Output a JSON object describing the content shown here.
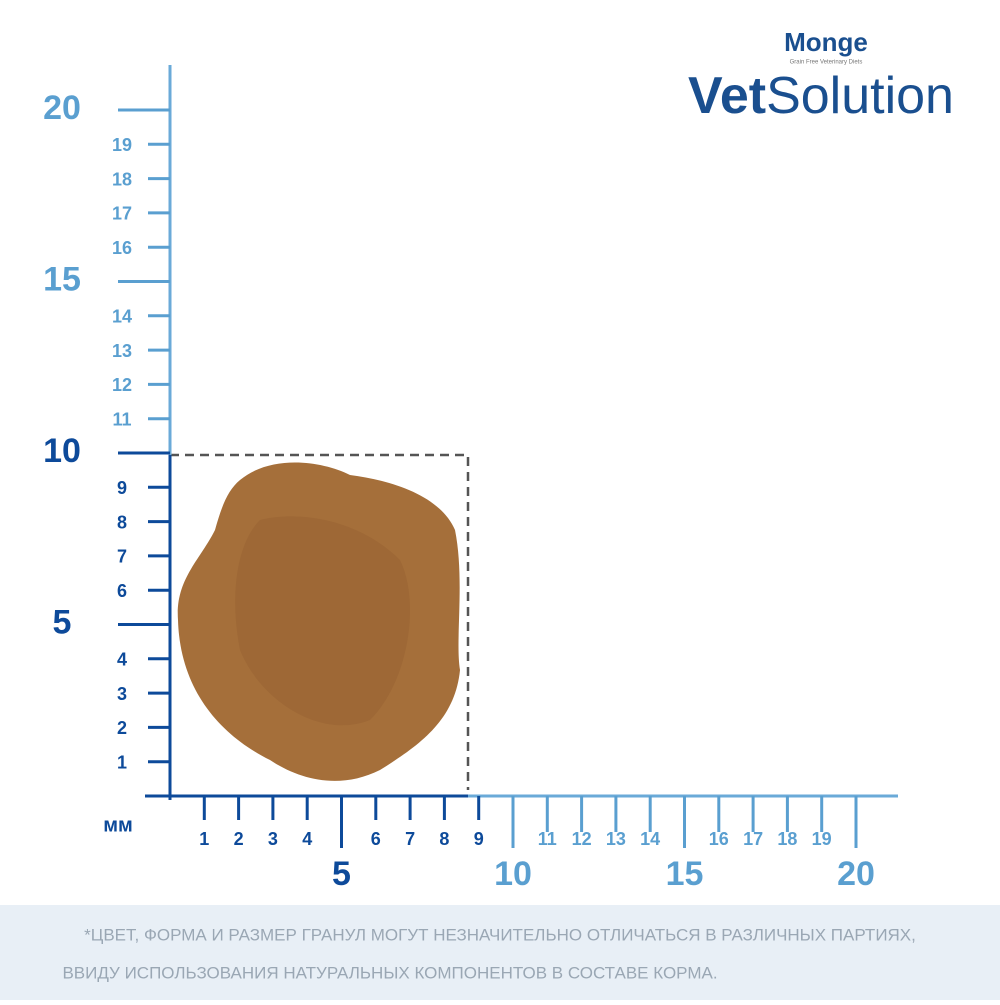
{
  "brand": {
    "name": "Monge",
    "tagline": "Grain Free Veterinary Diets",
    "product_bold": "Vet",
    "product_light": "Solution"
  },
  "ruler": {
    "unit": "мм",
    "y_labels": [
      1,
      2,
      3,
      4,
      5,
      6,
      7,
      8,
      9,
      10,
      11,
      12,
      13,
      14,
      15,
      16,
      17,
      18,
      19,
      20
    ],
    "x_labels": [
      1,
      2,
      3,
      4,
      5,
      6,
      7,
      8,
      9,
      10,
      11,
      12,
      13,
      14,
      15,
      16,
      17,
      18,
      19,
      20
    ]
  },
  "note": {
    "lines": [
      "*ЦВЕТ, ФОРМА И РАЗМЕР ГРАНУЛ МОГУТ НЕЗНАЧИТЕЛЬНО ОТЛИЧАТЬСЯ В РАЗЛИЧНЫХ ПАРТИЯХ,",
      "ВВИДУ ИСПОЛЬЗОВАНИЯ НАТУРАЛЬНЫХ КОМПОНЕНТОВ В СОСТАВЕ КОРМА."
    ]
  }
}
